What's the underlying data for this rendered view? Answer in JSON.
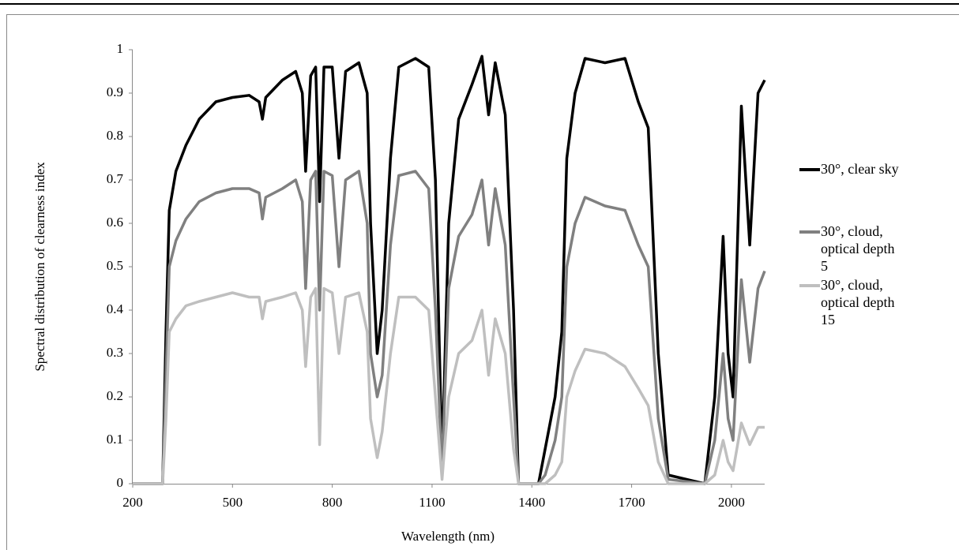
{
  "chart_data": {
    "type": "line",
    "x_label": "Wavelength (nm)",
    "y_label": "Spectral distribution of clearness index",
    "x": [
      200,
      290,
      300,
      310,
      330,
      360,
      400,
      450,
      500,
      550,
      580,
      590,
      600,
      650,
      690,
      710,
      720,
      735,
      750,
      762,
      775,
      800,
      820,
      840,
      880,
      905,
      915,
      935,
      950,
      975,
      1000,
      1050,
      1090,
      1110,
      1130,
      1150,
      1180,
      1220,
      1250,
      1270,
      1290,
      1320,
      1345,
      1360,
      1420,
      1440,
      1470,
      1490,
      1505,
      1530,
      1560,
      1620,
      1680,
      1720,
      1750,
      1780,
      1810,
      1920,
      1950,
      1975,
      1990,
      2005,
      2030,
      2055,
      2080,
      2100
    ],
    "series": [
      {
        "name": "30°, clear sky",
        "color": "#000000",
        "values": [
          0,
          0,
          0.35,
          0.63,
          0.72,
          0.78,
          0.84,
          0.88,
          0.89,
          0.895,
          0.88,
          0.84,
          0.89,
          0.93,
          0.95,
          0.9,
          0.72,
          0.94,
          0.96,
          0.65,
          0.96,
          0.96,
          0.75,
          0.95,
          0.97,
          0.9,
          0.6,
          0.3,
          0.4,
          0.75,
          0.96,
          0.98,
          0.96,
          0.7,
          0.05,
          0.6,
          0.84,
          0.92,
          0.985,
          0.85,
          0.97,
          0.85,
          0.4,
          0,
          0,
          0.08,
          0.2,
          0.35,
          0.75,
          0.9,
          0.98,
          0.97,
          0.98,
          0.88,
          0.82,
          0.3,
          0.02,
          0,
          0.2,
          0.57,
          0.3,
          0.2,
          0.87,
          0.55,
          0.9,
          0.93
        ]
      },
      {
        "name": "30°, cloud, optical depth 5",
        "color": "#808080",
        "values": [
          0,
          0,
          0.25,
          0.5,
          0.56,
          0.61,
          0.65,
          0.67,
          0.68,
          0.68,
          0.67,
          0.61,
          0.66,
          0.68,
          0.7,
          0.65,
          0.45,
          0.7,
          0.72,
          0.4,
          0.72,
          0.71,
          0.5,
          0.7,
          0.72,
          0.6,
          0.3,
          0.2,
          0.25,
          0.55,
          0.71,
          0.72,
          0.68,
          0.4,
          0.03,
          0.45,
          0.57,
          0.62,
          0.7,
          0.55,
          0.68,
          0.55,
          0.2,
          0,
          0,
          0.02,
          0.1,
          0.2,
          0.5,
          0.6,
          0.66,
          0.64,
          0.63,
          0.55,
          0.5,
          0.15,
          0.01,
          0,
          0.1,
          0.3,
          0.15,
          0.1,
          0.47,
          0.28,
          0.45,
          0.49
        ]
      },
      {
        "name": "30°, cloud, optical depth 15",
        "color": "#bfbfbf",
        "values": [
          0,
          0,
          0.15,
          0.35,
          0.38,
          0.41,
          0.42,
          0.43,
          0.44,
          0.43,
          0.43,
          0.38,
          0.42,
          0.43,
          0.44,
          0.4,
          0.27,
          0.43,
          0.45,
          0.09,
          0.45,
          0.44,
          0.3,
          0.43,
          0.44,
          0.35,
          0.15,
          0.06,
          0.12,
          0.3,
          0.43,
          0.43,
          0.4,
          0.2,
          0.01,
          0.2,
          0.3,
          0.33,
          0.4,
          0.25,
          0.38,
          0.3,
          0.08,
          0,
          0,
          0,
          0.02,
          0.05,
          0.2,
          0.26,
          0.31,
          0.3,
          0.27,
          0.22,
          0.18,
          0.05,
          0,
          0,
          0.02,
          0.1,
          0.05,
          0.03,
          0.14,
          0.09,
          0.13,
          0.13
        ]
      }
    ],
    "xlim": [
      200,
      2100
    ],
    "xticks": [
      200,
      500,
      800,
      1100,
      1400,
      1700,
      2000
    ],
    "ylim": [
      0,
      1
    ],
    "yticks": [
      0,
      0.1,
      0.2,
      0.3,
      0.4,
      0.5,
      0.6,
      0.7,
      0.8,
      0.9,
      1
    ],
    "grid": false,
    "legend": "right"
  }
}
